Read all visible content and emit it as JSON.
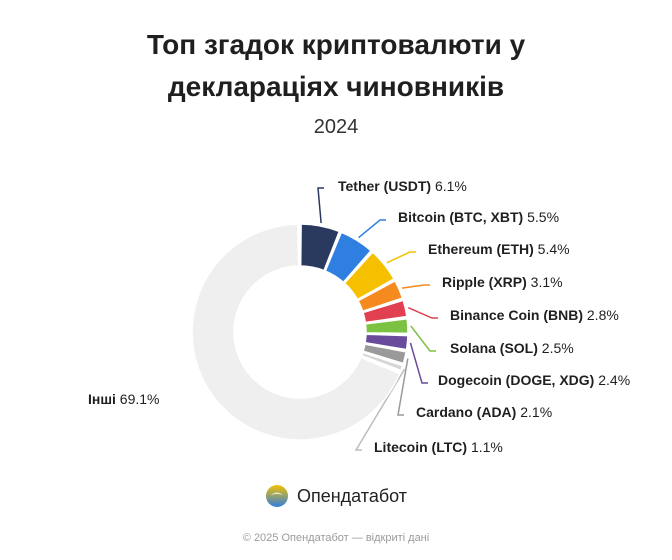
{
  "title_line1": "Топ згадок криптовалюти у",
  "title_line2": "деклараціях чиновників",
  "subtitle": "2024",
  "brand": "Опендатабот",
  "footer": "© 2025 Опендатабот — відкриті дані",
  "chart_data": {
    "type": "pie",
    "title": "Топ згадок криптовалюти у деклараціях чиновників",
    "subtitle": "2024",
    "unit": "%",
    "slices": [
      {
        "name": "Tether (USDT)",
        "value": 6.1,
        "label": "6.1%",
        "color": "#2a3a5e"
      },
      {
        "name": "Bitcoin (BTC, XBT)",
        "value": 5.5,
        "label": "5.5%",
        "color": "#2e7fe0"
      },
      {
        "name": "Ethereum (ETH)",
        "value": 5.4,
        "label": "5.4%",
        "color": "#f5c000"
      },
      {
        "name": "Ripple (XRP)",
        "value": 3.1,
        "label": "3.1%",
        "color": "#f58a1f"
      },
      {
        "name": "Binance Coin (BNB)",
        "value": 2.8,
        "label": "2.8%",
        "color": "#e04050"
      },
      {
        "name": "Solana (SOL)",
        "value": 2.5,
        "label": "2.5%",
        "color": "#7cc242"
      },
      {
        "name": "Dogecoin (DOGE, XDG)",
        "value": 2.4,
        "label": "2.4%",
        "color": "#6a4a9a"
      },
      {
        "name": "Cardano (ADA)",
        "value": 2.1,
        "label": "2.1%",
        "color": "#9a9a9a"
      },
      {
        "name": "Litecoin (LTC)",
        "value": 1.1,
        "label": "1.1%",
        "color": "#d6d6d6"
      },
      {
        "name": "Інші",
        "value": 69.1,
        "label": "69.1%",
        "color": "#efefef"
      }
    ]
  }
}
